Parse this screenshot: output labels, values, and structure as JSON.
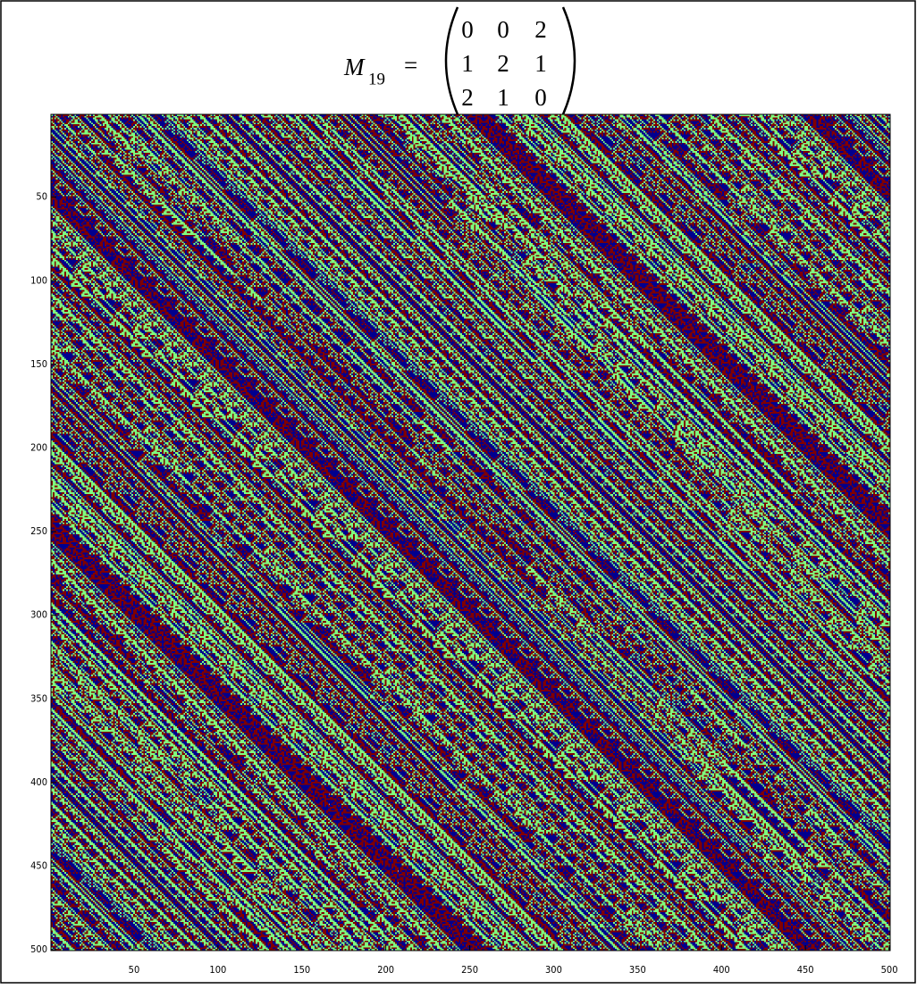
{
  "chart_data": {
    "type": "heatmap",
    "title": {
      "symbol": "M",
      "subscript": "19",
      "equals": "=",
      "matrix": [
        [
          0,
          0,
          2
        ],
        [
          1,
          2,
          1
        ],
        [
          2,
          1,
          0
        ]
      ]
    },
    "colors": [
      "#00008f",
      "#7fff7f",
      "#800000"
    ],
    "xlim": [
      0.5,
      500.5
    ],
    "ylim": [
      0.5,
      500.5
    ],
    "xticks": [
      50,
      100,
      150,
      200,
      250,
      300,
      350,
      400,
      450,
      500
    ],
    "yticks": [
      50,
      100,
      150,
      200,
      250,
      300,
      350,
      400,
      450,
      500
    ]
  }
}
